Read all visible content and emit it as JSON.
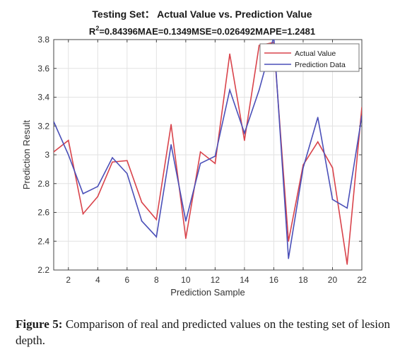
{
  "chart_data": {
    "type": "line",
    "title": "Testing Set： Actual Value vs. Prediction Value",
    "subtitle": {
      "r_prefix": "R",
      "r_superscript": "2",
      "text": "=0.84396MAE=0.1349MSE=0.026492MAPE=1.2481"
    },
    "xlabel": "Prediction Sample",
    "ylabel": "Prediction Result",
    "xlim": [
      1,
      22
    ],
    "ylim": [
      2.2,
      3.8
    ],
    "x_ticks": [
      2,
      4,
      6,
      8,
      10,
      12,
      14,
      16,
      18,
      20,
      22
    ],
    "y_ticks": [
      2.2,
      2.4,
      2.6,
      2.8,
      3.0,
      3.2,
      3.4,
      3.6,
      3.8
    ],
    "y_tick_labels": [
      "2.2",
      "2.4",
      "2.6",
      "2.8",
      "3",
      "3.2",
      "3.4",
      "3.6",
      "3.8"
    ],
    "grid": true,
    "legend_position": "top-right",
    "x": [
      1,
      2,
      3,
      4,
      5,
      6,
      7,
      8,
      9,
      10,
      11,
      12,
      13,
      14,
      15,
      16,
      17,
      18,
      19,
      20,
      21,
      22
    ],
    "series": [
      {
        "name": "Actual Value",
        "color": "#d9434b",
        "values": [
          3.02,
          3.1,
          2.59,
          2.71,
          2.95,
          2.96,
          2.67,
          2.55,
          3.21,
          2.42,
          3.02,
          2.94,
          3.7,
          3.1,
          3.76,
          3.78,
          2.4,
          2.93,
          3.09,
          2.91,
          2.24,
          3.33
        ]
      },
      {
        "name": "Prediction Data",
        "color": "#4a4fb8",
        "values": [
          3.23,
          3.0,
          2.73,
          2.78,
          2.98,
          2.87,
          2.54,
          2.43,
          3.07,
          2.54,
          2.94,
          2.99,
          3.45,
          3.15,
          3.45,
          3.82,
          2.28,
          2.91,
          3.26,
          2.69,
          2.63,
          3.27
        ]
      }
    ]
  },
  "caption": {
    "label": "Figure 5:",
    "text": " Comparison of real and predicted values on the testing set of lesion depth."
  }
}
